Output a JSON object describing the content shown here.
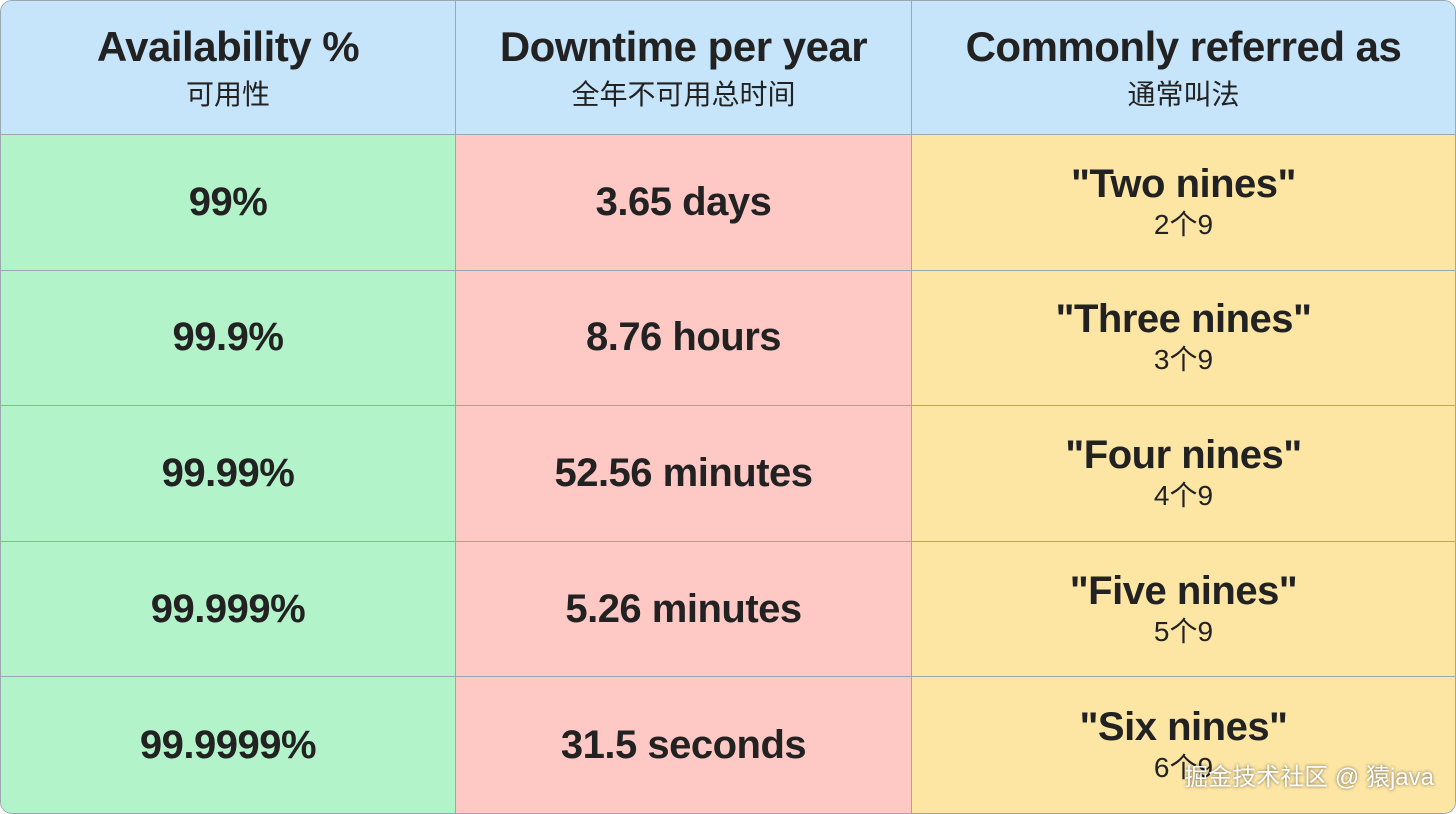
{
  "table": {
    "headers": [
      {
        "title": "Availability %",
        "subtitle": "可用性"
      },
      {
        "title": "Downtime per year",
        "subtitle": "全年不可用总时间"
      },
      {
        "title": "Commonly referred as",
        "subtitle": "通常叫法"
      }
    ],
    "rows": [
      [
        "99%",
        "3.65 days",
        {
          "name": "\"Two nines\"",
          "note": "2个9"
        }
      ],
      [
        "99.9%",
        "8.76 hours",
        {
          "name": "\"Three nines\"",
          "note": "3个9"
        }
      ],
      [
        "99.99%",
        "52.56 minutes",
        {
          "name": "\"Four nines\"",
          "note": "4个9"
        }
      ],
      [
        "99.999%",
        "5.26 minutes",
        {
          "name": "\"Five nines\"",
          "note": "5个9"
        }
      ],
      [
        "99.9999%",
        "31.5 seconds",
        {
          "name": "\"Six nines\"",
          "note": "6个9"
        }
      ]
    ]
  },
  "watermark": "掘金技术社区 @ 猿java"
}
